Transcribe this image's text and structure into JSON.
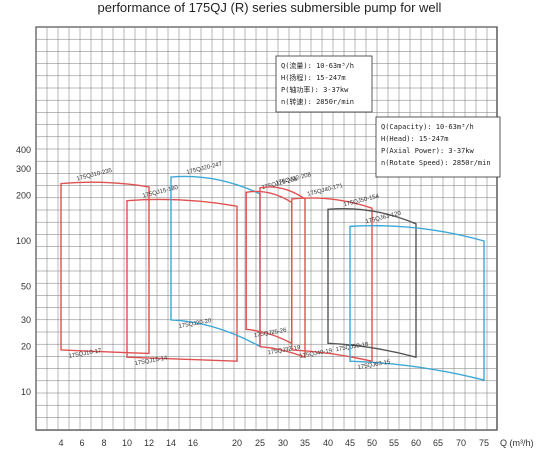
{
  "chart_data": {
    "type": "line",
    "title": "performance of 175QJ (R) series submersible pump for well",
    "x_unit": "Q (m³/h)",
    "x_ticks": [
      4,
      6,
      8,
      10,
      12,
      14,
      16,
      20,
      22,
      25,
      28,
      30,
      32,
      35,
      40,
      45,
      50,
      55,
      60,
      65,
      70,
      75
    ],
    "y_scale": "log",
    "y_ticks": [
      10,
      20,
      30,
      50,
      100,
      200,
      300,
      400
    ],
    "grid": true,
    "info_boxes": [
      {
        "lines": [
          "Q(流量): 10-63m³/h",
          "H(扬程): 15-247m",
          "P(轴功率): 3-37kw",
          "n(转速): 2850r/min"
        ]
      },
      {
        "lines": [
          "Q(Capacity): 10-63m³/h",
          "H(Head): 15-247m",
          "P(Axial Power): 3-37kw",
          "n(Rotate Speed): 2850r/min"
        ]
      }
    ],
    "series": [
      {
        "top_label": "175QJ10-235",
        "bottom_label": "175QJ10-17",
        "color": "#e05050",
        "x": [
          4,
          12
        ],
        "top": [
          240,
          228
        ],
        "bottom": [
          19,
          18
        ]
      },
      {
        "top_label": "175QJ15-180",
        "bottom_label": "175QJ15-14",
        "color": "#e05050",
        "x": [
          10,
          20
        ],
        "top": [
          185,
          170
        ],
        "bottom": [
          17,
          16
        ]
      },
      {
        "top_label": "175QJ20-247",
        "bottom_label": "175QJ20-20",
        "color": "#3aa8d8",
        "x": [
          14,
          25
        ],
        "top": [
          265,
          205
        ],
        "bottom": [
          30,
          20
        ]
      },
      {
        "top_label": "175QJ25-208",
        "bottom_label": "175QJ25-26",
        "color": "#e05050",
        "x": [
          22,
          32
        ],
        "top": [
          210,
          180
        ],
        "bottom": [
          26,
          21
        ]
      },
      {
        "top_label": "175QJ32-208",
        "bottom_label": "175QJ32-19",
        "color": "#e05050",
        "x": [
          25,
          35
        ],
        "top": [
          225,
          190
        ],
        "bottom": [
          20,
          17
        ]
      },
      {
        "top_label": "175QJ40-171",
        "bottom_label": "175QJ40-19",
        "color": "#e05050",
        "x": [
          32,
          50
        ],
        "top": [
          190,
          165
        ],
        "bottom": [
          19,
          16
        ]
      },
      {
        "top_label": "175QJ50-154",
        "bottom_label": "175QJ50-18",
        "color": "#555555",
        "x": [
          40,
          60
        ],
        "top": [
          162,
          130
        ],
        "bottom": [
          21,
          17
        ]
      },
      {
        "top_label": "175QJ63-120",
        "bottom_label": "175QJ63-15",
        "color": "#3aa8d8",
        "x": [
          45,
          75
        ],
        "top": [
          125,
          100
        ],
        "bottom": [
          16,
          12
        ]
      }
    ]
  }
}
